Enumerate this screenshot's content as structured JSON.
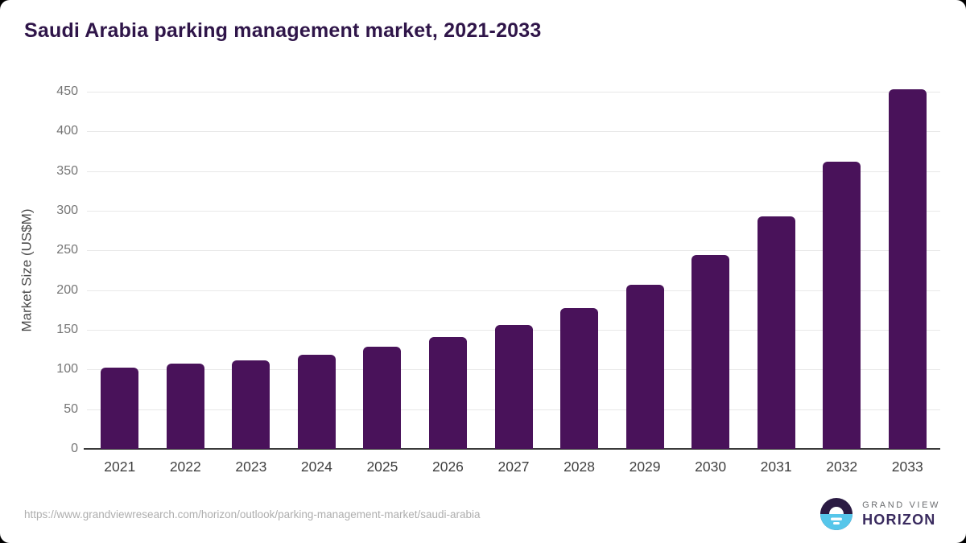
{
  "page": {
    "source_url": "https://www.grandviewresearch.com/horizon/outlook/parking-management-market/saudi-arabia",
    "logo": {
      "line1": "GRAND VIEW",
      "line2": "HORIZON"
    }
  },
  "colors": {
    "bar": "#49125a",
    "title": "#2f1549",
    "y_tick_label": "#757575",
    "x_tick_label": "#3f3f3f",
    "gridline": "#e8e8e8",
    "baseline": "#3a3a3a",
    "footer_text": "#aeaeae",
    "logo_dark": "#2b1b43",
    "logo_blue": "#56c6ea"
  },
  "chart_data": {
    "type": "bar",
    "title": "Saudi Arabia parking management market, 2021-2033",
    "categories": [
      "2021",
      "2022",
      "2023",
      "2024",
      "2025",
      "2026",
      "2027",
      "2028",
      "2029",
      "2030",
      "2031",
      "2032",
      "2033"
    ],
    "values": [
      102,
      107,
      112,
      119,
      129,
      141,
      156,
      177,
      207,
      244,
      293,
      362,
      453
    ],
    "xlabel": "",
    "ylabel": "Market Size (US$M)",
    "ylim": [
      0,
      450
    ],
    "ytick_step": 50,
    "yticks": [
      0,
      50,
      100,
      150,
      200,
      250,
      300,
      350,
      400,
      450
    ],
    "grid": true,
    "legend": false
  }
}
